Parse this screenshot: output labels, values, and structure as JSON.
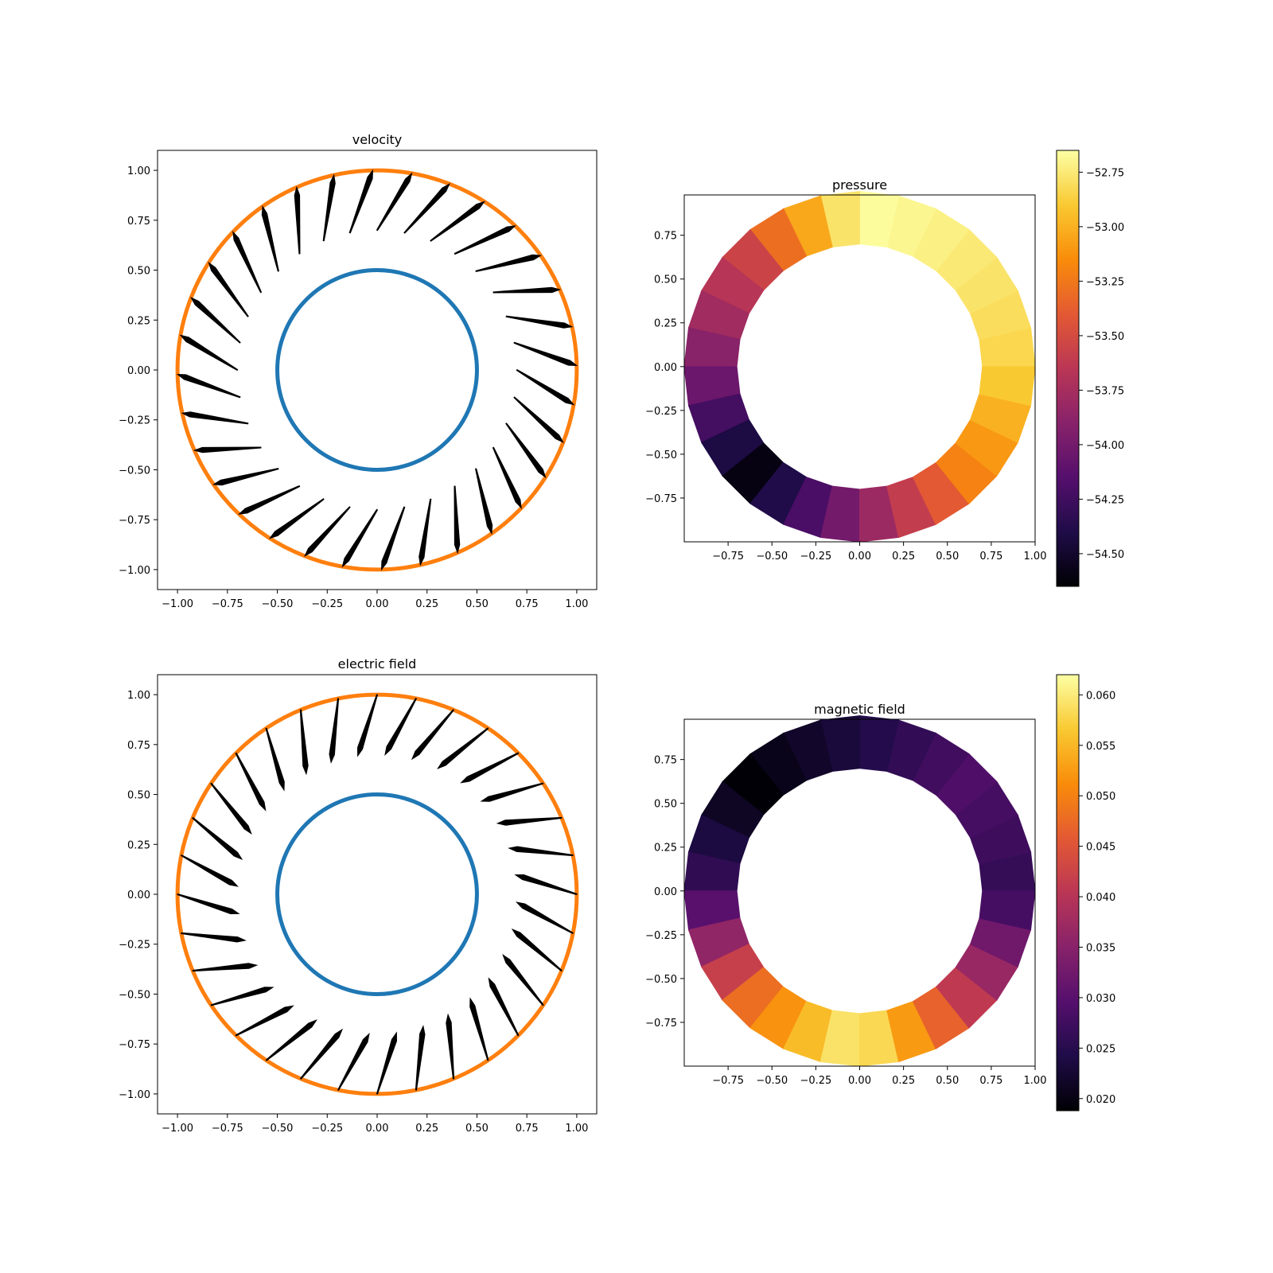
{
  "chart_data": [
    {
      "type": "quiver",
      "title": "velocity",
      "xlim": [
        -1.1,
        1.1
      ],
      "ylim": [
        -1.1,
        1.1
      ],
      "xticks": [
        "−1.00",
        "−0.75",
        "−0.50",
        "−0.25",
        "0.00",
        "0.25",
        "0.50",
        "0.75",
        "1.00"
      ],
      "yticks": [
        "1.00",
        "0.75",
        "0.50",
        "0.25",
        "0.00",
        "−0.25",
        "−0.50",
        "−0.75",
        "−1.00"
      ],
      "circles": [
        {
          "radius": 0.5,
          "color": "#1f77b4"
        },
        {
          "radius": 1.0,
          "color": "#ff7f0e"
        }
      ],
      "arrow_color": "#000000",
      "arrow_count": 32,
      "arrow_span": [
        0.7,
        1.0
      ],
      "arrow_direction": "outward",
      "arrow_twist_deg": -10,
      "grid": false
    },
    {
      "type": "heatmap",
      "title": "pressure",
      "colormap": "inferno",
      "xticks": [
        "−0.75",
        "−0.50",
        "−0.25",
        "0.00",
        "0.25",
        "0.50",
        "0.75",
        "1.00"
      ],
      "yticks": [
        "0.75",
        "0.50",
        "0.25",
        "0.00",
        "−0.25",
        "−0.50",
        "−0.75"
      ],
      "colorbar_ticks": [
        "−52.75",
        "−53.00",
        "−53.25",
        "−53.50",
        "−53.75",
        "−54.00",
        "−54.25",
        "−54.50"
      ],
      "value_range": [
        -54.65,
        -52.65
      ],
      "annulus": {
        "inner_radius": 0.7,
        "outer_radius": 1.0
      },
      "angle_values_deg": [
        0,
        45,
        90,
        135,
        180,
        225,
        270,
        315
      ],
      "values": [
        -52.85,
        -52.75,
        -52.65,
        -53.55,
        -53.95,
        -54.6,
        -53.9,
        -53.2
      ],
      "grid": false
    },
    {
      "type": "quiver",
      "title": "electric field",
      "xlim": [
        -1.1,
        1.1
      ],
      "ylim": [
        -1.1,
        1.1
      ],
      "xticks": [
        "−1.00",
        "−0.75",
        "−0.50",
        "−0.25",
        "0.00",
        "0.25",
        "0.50",
        "0.75",
        "1.00"
      ],
      "yticks": [
        "1.00",
        "0.75",
        "0.50",
        "0.25",
        "0.00",
        "−0.25",
        "−0.50",
        "−0.75",
        "−1.00"
      ],
      "circles": [
        {
          "radius": 0.5,
          "color": "#1f77b4"
        },
        {
          "radius": 1.0,
          "color": "#ff7f0e"
        }
      ],
      "arrow_color": "#000000",
      "arrow_count": 32,
      "arrow_span": [
        0.7,
        1.0
      ],
      "arrow_direction": "inward",
      "arrow_twist_deg": 8,
      "grid": false
    },
    {
      "type": "heatmap",
      "title": "magnetic field",
      "colormap": "inferno",
      "xticks": [
        "−0.75",
        "−0.50",
        "−0.25",
        "0.00",
        "0.25",
        "0.50",
        "0.75",
        "1.00"
      ],
      "yticks": [
        "0.75",
        "0.50",
        "0.25",
        "0.00",
        "−0.25",
        "−0.50",
        "−0.75"
      ],
      "colorbar_ticks": [
        "0.060",
        "0.055",
        "0.050",
        "0.045",
        "0.040",
        "0.035",
        "0.030",
        "0.025",
        "0.020"
      ],
      "value_range": [
        0.0188,
        0.062
      ],
      "annulus": {
        "inner_radius": 0.7,
        "outer_radius": 1.0
      },
      "angle_values_deg": [
        0,
        45,
        90,
        135,
        180,
        225,
        270,
        315
      ],
      "values": [
        0.026,
        0.029,
        0.024,
        0.019,
        0.027,
        0.048,
        0.061,
        0.041
      ],
      "grid": false
    }
  ]
}
